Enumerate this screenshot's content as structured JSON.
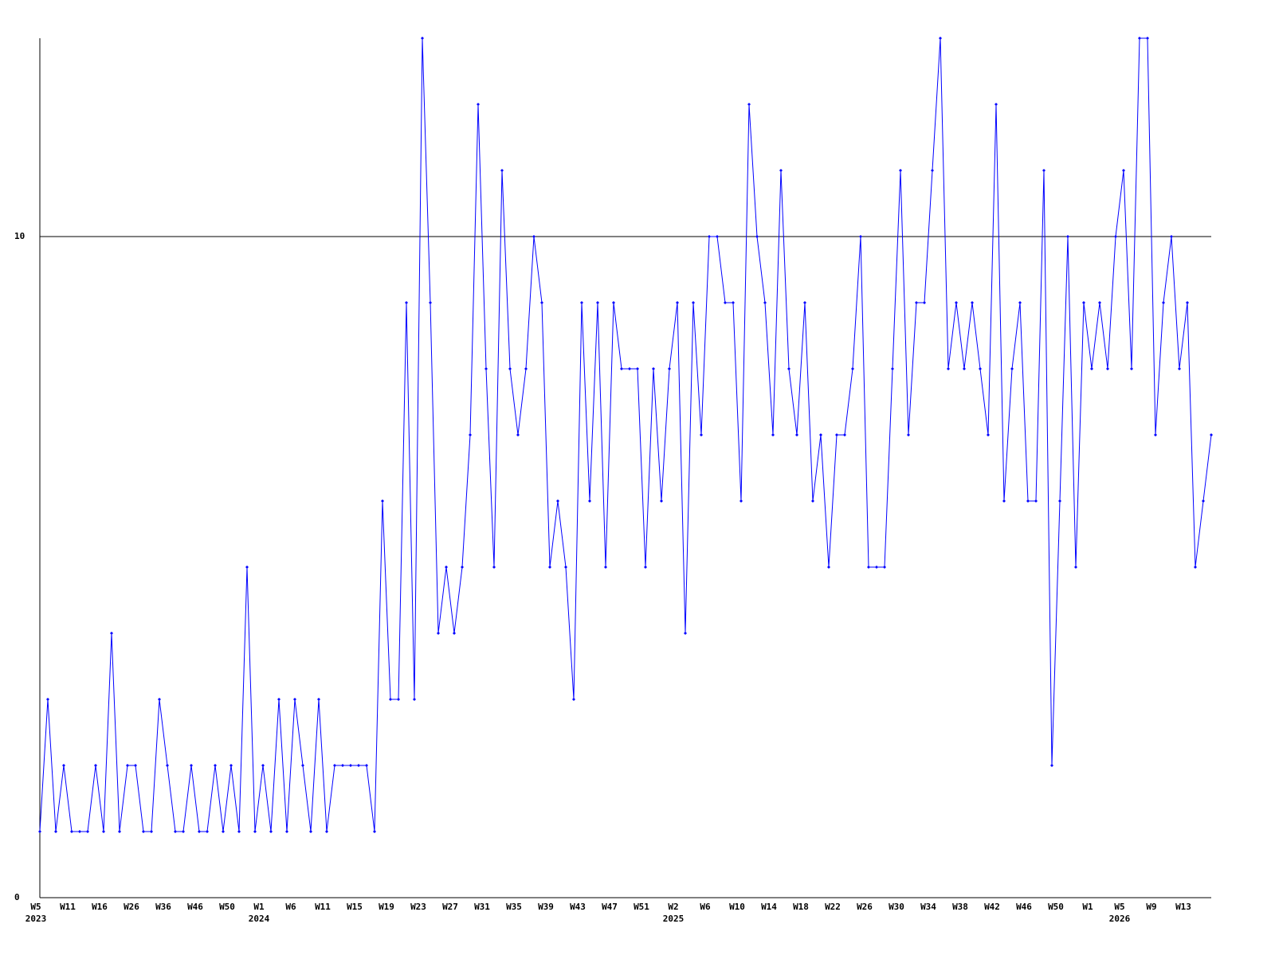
{
  "chart_data": {
    "type": "line",
    "color": "#0000ff",
    "categories": [
      "W5",
      null,
      null,
      null,
      "W11",
      null,
      null,
      null,
      "W16",
      null,
      null,
      null,
      "W26",
      null,
      null,
      null,
      "W36",
      null,
      null,
      null,
      "W46",
      null,
      null,
      null,
      "W50",
      null,
      null,
      null,
      "W1",
      null,
      null,
      null,
      "W6",
      null,
      null,
      null,
      "W11",
      null,
      null,
      null,
      "W15",
      null,
      null,
      null,
      "W19",
      null,
      null,
      null,
      "W23",
      null,
      null,
      null,
      "W27",
      null,
      null,
      null,
      "W31",
      null,
      null,
      null,
      "W35",
      null,
      null,
      null,
      "W39",
      null,
      null,
      null,
      "W43",
      null,
      null,
      null,
      "W47",
      null,
      null,
      null,
      "W51",
      null,
      null,
      null,
      "W2",
      null,
      null,
      null,
      "W6",
      null,
      null,
      null,
      "W10",
      null,
      null,
      null,
      "W14",
      null,
      null,
      null,
      "W18",
      null,
      null,
      null,
      "W22",
      null,
      null,
      null,
      "W26",
      null,
      null,
      null,
      "W30",
      null,
      null,
      null,
      "W34",
      null,
      null,
      null,
      "W38",
      null,
      null,
      null,
      "W42",
      null,
      null,
      null,
      "W46",
      null,
      null,
      null,
      "W50",
      null,
      null,
      null,
      "W1",
      null,
      null,
      null,
      "W5",
      null,
      null,
      null,
      "W9",
      null,
      null,
      null,
      "W13",
      null,
      null,
      null
    ],
    "category_years": [
      "2023",
      null,
      null,
      null,
      null,
      null,
      null,
      null,
      null,
      null,
      null,
      null,
      null,
      null,
      null,
      null,
      null,
      null,
      null,
      null,
      null,
      null,
      null,
      null,
      null,
      null,
      null,
      null,
      "2024",
      null,
      null,
      null,
      null,
      null,
      null,
      null,
      null,
      null,
      null,
      null,
      null,
      null,
      null,
      null,
      null,
      null,
      null,
      null,
      null,
      null,
      null,
      null,
      null,
      null,
      null,
      null,
      null,
      null,
      null,
      null,
      null,
      null,
      null,
      null,
      null,
      null,
      null,
      null,
      null,
      null,
      null,
      null,
      null,
      null,
      null,
      null,
      null,
      null,
      null,
      null,
      "2025",
      null,
      null,
      null,
      null,
      null,
      null,
      null,
      null,
      null,
      null,
      null,
      null,
      null,
      null,
      null,
      null,
      null,
      null,
      null,
      null,
      null,
      null,
      null,
      null,
      null,
      null,
      null,
      null,
      null,
      null,
      null,
      null,
      null,
      null,
      null,
      null,
      null,
      null,
      null,
      null,
      null,
      null,
      null,
      null,
      null,
      null,
      null,
      null,
      null,
      null,
      null,
      null,
      null,
      null,
      null,
      "2026",
      null,
      null,
      null,
      null,
      null,
      null,
      null,
      null,
      null,
      null,
      null,
      null,
      null,
      null,
      null
    ],
    "values": [
      1,
      3,
      1,
      2,
      1,
      1,
      1,
      2,
      1,
      4,
      1,
      2,
      2,
      1,
      1,
      3,
      2,
      1,
      1,
      2,
      1,
      1,
      2,
      1,
      2,
      1,
      5,
      1,
      2,
      1,
      3,
      1,
      3,
      2,
      1,
      3,
      1,
      2,
      2,
      2,
      2,
      2,
      1,
      6,
      3,
      3,
      9,
      3,
      13,
      9,
      4,
      5,
      4,
      5,
      7,
      12,
      8,
      5,
      11,
      8,
      7,
      8,
      10,
      9,
      5,
      6,
      5,
      3,
      9,
      6,
      9,
      5,
      9,
      8,
      8,
      8,
      5,
      8,
      6,
      8,
      9,
      4,
      9,
      7,
      10,
      10,
      9,
      9,
      6,
      12,
      10,
      9,
      7,
      11,
      8,
      7,
      9,
      6,
      7,
      5,
      7,
      7,
      8,
      10,
      5,
      5,
      5,
      8,
      11,
      7,
      9,
      9,
      11,
      13,
      8,
      9,
      8,
      9,
      8,
      7,
      12,
      6,
      8,
      9,
      6,
      6,
      11,
      2,
      6,
      10,
      5,
      9,
      8,
      9,
      8,
      10,
      11,
      8,
      13,
      13,
      7,
      9,
      10,
      8,
      9,
      5,
      6,
      7
    ],
    "ylim": [
      0,
      13
    ],
    "yticks": [
      0,
      10
    ],
    "grid": true
  }
}
